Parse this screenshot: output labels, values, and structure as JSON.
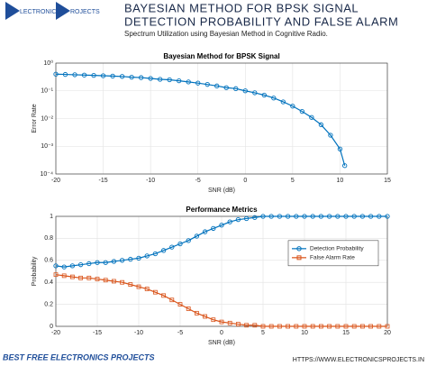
{
  "header": {
    "logo": [
      "LECTRONICS",
      "ROJECTS"
    ],
    "title": [
      "BAYESIAN METHOD FOR BPSK SIGNAL",
      "DETECTION PROBABILITY AND FALSE ALARM"
    ],
    "subtitle": "Spectrum Utilization using Bayesian Method in Cognitive Radio."
  },
  "chart_data": [
    {
      "type": "line",
      "title": "Bayesian Method for BPSK Signal",
      "x_label": "SNR (dB)",
      "y_label": "Error Rate",
      "log_y": true,
      "grid": true,
      "color": "#0072bd",
      "marker": "o",
      "x": [
        -20,
        -19,
        -18,
        -17,
        -16,
        -15,
        -14,
        -13,
        -12,
        -11,
        -10,
        -9,
        -8,
        -7,
        -6,
        -5,
        -4,
        -3,
        -2,
        -1,
        0,
        1,
        2,
        3,
        4,
        5,
        6,
        7,
        8,
        9,
        10,
        10.5
      ],
      "values": [
        0.4,
        0.39,
        0.38,
        0.37,
        0.36,
        0.35,
        0.34,
        0.33,
        0.31,
        0.3,
        0.28,
        0.26,
        0.25,
        0.23,
        0.21,
        0.19,
        0.17,
        0.15,
        0.13,
        0.12,
        0.1,
        0.085,
        0.07,
        0.055,
        0.04,
        0.028,
        0.018,
        0.011,
        0.006,
        0.0025,
        0.0008,
        0.0002
      ],
      "xlim": [
        -20,
        15
      ],
      "xticks": [
        -20,
        -15,
        -10,
        -5,
        0,
        5,
        10,
        15
      ],
      "ylim": [
        0.0001,
        1
      ],
      "yticks": [
        {
          "value": 0.0001,
          "label": "10⁻⁴"
        },
        {
          "value": 0.001,
          "label": "10⁻³"
        },
        {
          "value": 0.01,
          "label": "10⁻²"
        },
        {
          "value": 0.1,
          "label": "10⁻¹"
        },
        {
          "value": 1,
          "label": "10⁰"
        }
      ]
    },
    {
      "type": "line",
      "title": "Performance Metrics",
      "x_label": "SNR (dB)",
      "y_label": "Probability",
      "grid": true,
      "legend": "right",
      "x": [
        -20,
        -19,
        -18,
        -17,
        -16,
        -15,
        -14,
        -13,
        -12,
        -11,
        -10,
        -9,
        -8,
        -7,
        -6,
        -5,
        -4,
        -3,
        -2,
        -1,
        0,
        1,
        2,
        3,
        4,
        5,
        6,
        7,
        8,
        9,
        10,
        11,
        12,
        13,
        14,
        15,
        16,
        17,
        18,
        19,
        20
      ],
      "series": [
        {
          "name": "Detection Probability",
          "color": "#0072bd",
          "marker": "o",
          "values": [
            0.55,
            0.54,
            0.55,
            0.56,
            0.57,
            0.58,
            0.58,
            0.59,
            0.6,
            0.61,
            0.62,
            0.64,
            0.66,
            0.69,
            0.72,
            0.75,
            0.78,
            0.82,
            0.86,
            0.89,
            0.92,
            0.95,
            0.97,
            0.98,
            0.99,
            1,
            1,
            1,
            1,
            1,
            1,
            1,
            1,
            1,
            1,
            1,
            1,
            1,
            1,
            1,
            1
          ]
        },
        {
          "name": "False Alarm Rate",
          "color": "#d95319",
          "marker": "s",
          "values": [
            0.47,
            0.46,
            0.45,
            0.44,
            0.44,
            0.43,
            0.42,
            0.41,
            0.4,
            0.38,
            0.36,
            0.34,
            0.31,
            0.28,
            0.24,
            0.2,
            0.16,
            0.12,
            0.09,
            0.06,
            0.04,
            0.03,
            0.02,
            0.01,
            0.01,
            0,
            0,
            0,
            0,
            0,
            0,
            0,
            0,
            0,
            0,
            0,
            0,
            0,
            0,
            0,
            0
          ]
        }
      ],
      "xlim": [
        -20,
        20
      ],
      "xticks": [
        -20,
        -15,
        -10,
        -5,
        0,
        5,
        10,
        15,
        20
      ],
      "ylim": [
        0,
        1
      ],
      "yticks": [
        0,
        0.2,
        0.4,
        0.6,
        0.8,
        1
      ]
    }
  ],
  "footer": {
    "left": "BEST FREE ELECTRONICS PROJECTS",
    "right": "HTTPS://WWW.ELECTRONICSPROJECTS.IN"
  }
}
